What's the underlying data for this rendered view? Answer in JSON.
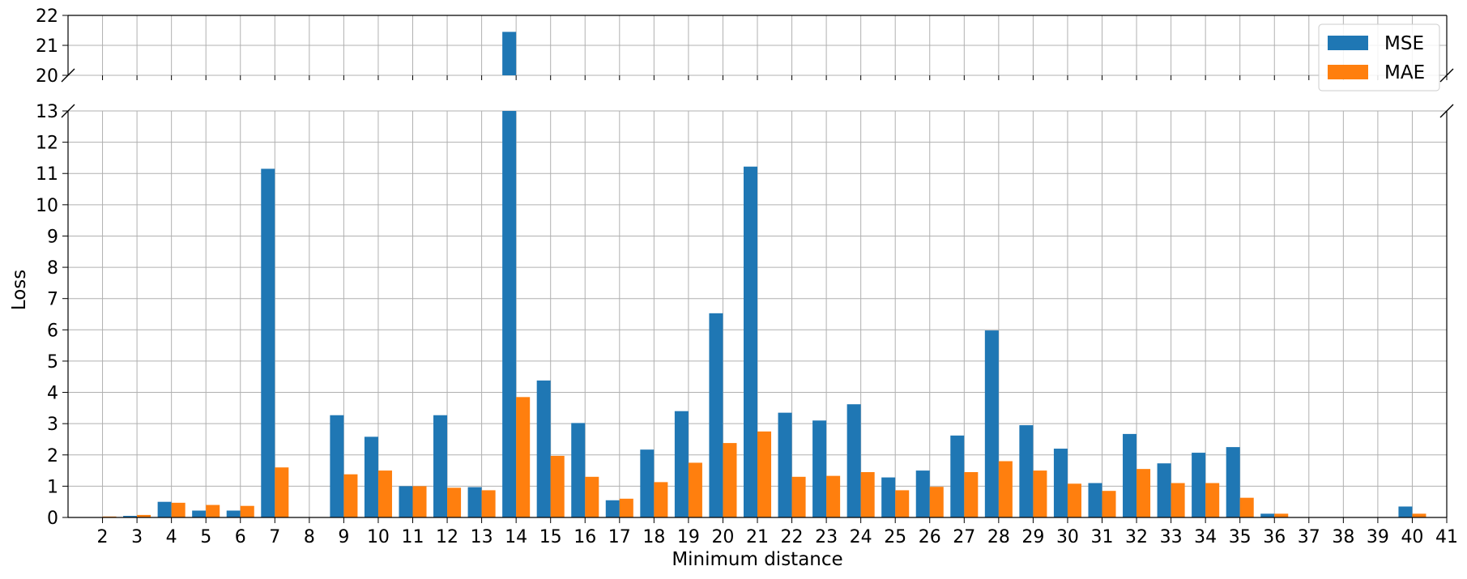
{
  "chart_data": {
    "type": "bar",
    "xlabel": "Minimum distance",
    "ylabel": "Loss",
    "x_ticks": [
      "2",
      "3",
      "4",
      "5",
      "6",
      "7",
      "8",
      "9",
      "10",
      "11",
      "12",
      "13",
      "14",
      "15",
      "16",
      "17",
      "18",
      "19",
      "20",
      "21",
      "22",
      "23",
      "24",
      "25",
      "26",
      "27",
      "28",
      "29",
      "30",
      "31",
      "32",
      "33",
      "34",
      "35",
      "36",
      "37",
      "38",
      "39",
      "40",
      "41"
    ],
    "categories": [
      2,
      3,
      4,
      5,
      6,
      7,
      8,
      9,
      10,
      11,
      12,
      13,
      14,
      15,
      16,
      17,
      18,
      19,
      20,
      21,
      22,
      23,
      24,
      25,
      26,
      27,
      28,
      29,
      30,
      31,
      32,
      33,
      34,
      35,
      36,
      37,
      38,
      39,
      40
    ],
    "series": [
      {
        "name": "MSE",
        "color": "#1f77b4",
        "values": [
          0,
          0.05,
          0.5,
          0.22,
          0.22,
          11.15,
          0,
          3.27,
          2.58,
          1.0,
          3.27,
          0.97,
          21.45,
          4.38,
          3.02,
          0.55,
          2.17,
          3.4,
          6.53,
          11.22,
          3.35,
          3.1,
          3.62,
          1.28,
          1.5,
          2.62,
          5.98,
          2.95,
          2.2,
          1.1,
          2.67,
          1.73,
          2.07,
          2.25,
          0.12,
          0,
          0,
          0,
          0.35
        ]
      },
      {
        "name": "MAE",
        "color": "#ff7f0e",
        "values": [
          0.03,
          0.08,
          0.47,
          0.4,
          0.37,
          1.6,
          0,
          1.38,
          1.5,
          1.0,
          0.95,
          0.87,
          3.85,
          1.97,
          1.3,
          0.6,
          1.13,
          1.75,
          2.38,
          2.75,
          1.3,
          1.33,
          1.45,
          0.87,
          0.98,
          1.45,
          1.8,
          1.5,
          1.08,
          0.85,
          1.55,
          1.1,
          1.1,
          0.63,
          0.12,
          0,
          0,
          0,
          0.12
        ]
      }
    ],
    "broken_axis": {
      "upper": {
        "ylim": [
          20,
          22
        ],
        "yticks": [
          20,
          21,
          22
        ]
      },
      "lower": {
        "ylim": [
          0,
          13
        ],
        "yticks": [
          0,
          1,
          2,
          3,
          4,
          5,
          6,
          7,
          8,
          9,
          10,
          11,
          12,
          13
        ]
      }
    },
    "xlim": [
      1,
      41
    ],
    "grid": true,
    "legend_position": "top-right"
  }
}
